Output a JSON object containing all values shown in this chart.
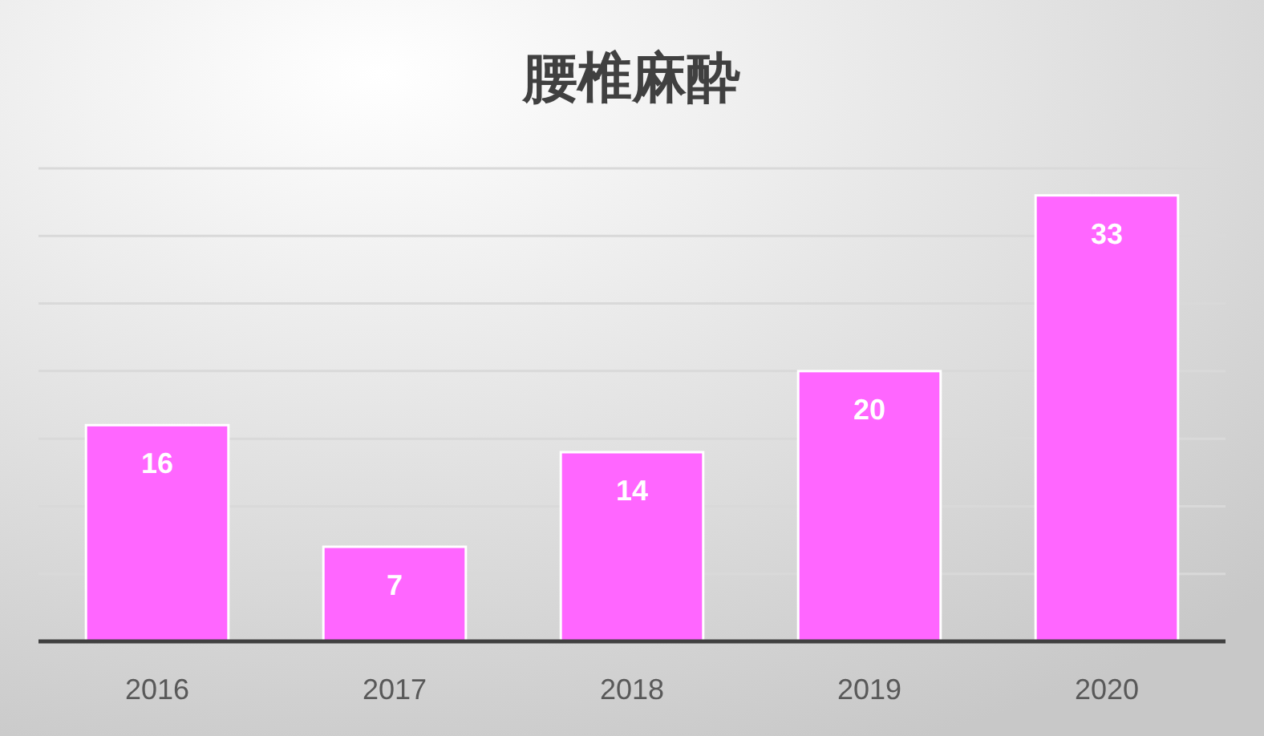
{
  "chart_data": {
    "type": "bar",
    "title": "腰椎麻酔",
    "categories": [
      "2016",
      "2017",
      "2018",
      "2019",
      "2020"
    ],
    "values": [
      16,
      7,
      14,
      20,
      33
    ],
    "color": "#ff66ff",
    "ylim": [
      0,
      35
    ],
    "yticks": [
      {
        "value": 0,
        "label": null
      },
      {
        "value": 5,
        "label": null
      },
      {
        "value": 10,
        "label": null
      },
      {
        "value": 15,
        "label": null
      },
      {
        "value": 20,
        "label": null
      },
      {
        "value": 25,
        "label": null
      },
      {
        "value": 30,
        "label": null
      },
      {
        "value": 35,
        "label": null
      }
    ],
    "grid": "y",
    "data_labels": true,
    "tick_labels": "x"
  }
}
